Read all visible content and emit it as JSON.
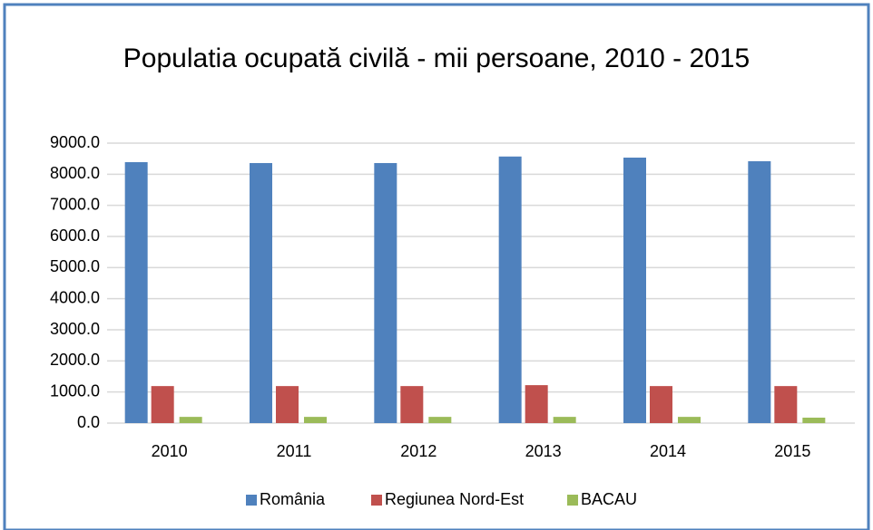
{
  "chart_data": {
    "type": "bar",
    "title": "Populatia ocupată civilă - mii persoane, 2010 - 2015",
    "categories": [
      "2010",
      "2011",
      "2012",
      "2013",
      "2014",
      "2015"
    ],
    "series": [
      {
        "name": "România",
        "color": "#4f81bd",
        "values": [
          8390,
          8360,
          8360,
          8570,
          8535,
          8420
        ]
      },
      {
        "name": "Regiunea Nord-Est",
        "color": "#c0504d",
        "values": [
          1190,
          1190,
          1190,
          1220,
          1190,
          1190
        ]
      },
      {
        "name": "BACAU",
        "color": "#9bbb59",
        "values": [
          200,
          200,
          200,
          200,
          200,
          175
        ]
      }
    ],
    "ylim": [
      0,
      9000
    ],
    "yticks": [
      {
        "value": 0,
        "label": "0.0"
      },
      {
        "value": 1000,
        "label": "1000.0"
      },
      {
        "value": 2000,
        "label": "2000.0"
      },
      {
        "value": 3000,
        "label": "3000.0"
      },
      {
        "value": 4000,
        "label": "4000.0"
      },
      {
        "value": 5000,
        "label": "5000.0"
      },
      {
        "value": 6000,
        "label": "6000.0"
      },
      {
        "value": 7000,
        "label": "7000.0"
      },
      {
        "value": 8000,
        "label": "8000.0"
      },
      {
        "value": 9000,
        "label": "9000.0"
      }
    ],
    "grid": true,
    "legend": "bottom"
  }
}
